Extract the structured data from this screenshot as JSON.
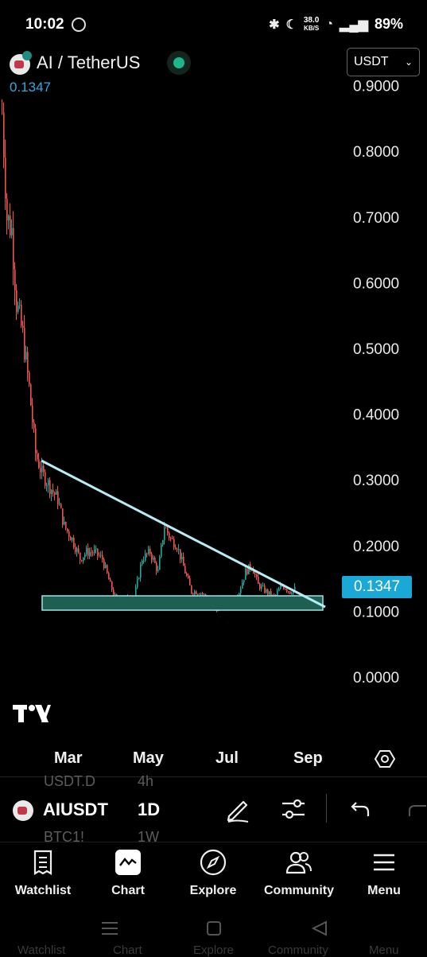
{
  "status_bar": {
    "time": "10:02",
    "net_speed_value": "38.0",
    "net_speed_unit": "KB/S",
    "battery": "89%"
  },
  "header": {
    "pair_title": "AI / TetherUS",
    "current_price": "0.1347",
    "currency": "USDT",
    "live_color": "#1fb58a"
  },
  "chart": {
    "price_tag": "0.1347",
    "y_ticks": [
      "0.9000",
      "0.8000",
      "0.7000",
      "0.6000",
      "0.5000",
      "0.4000",
      "0.3000",
      "0.2000",
      "0.1000",
      "0.0000"
    ],
    "x_ticks": [
      "Mar",
      "May",
      "Jul",
      "Sep"
    ],
    "accent_color": "#1aa9d6",
    "trendline_color": "#b8ecf5",
    "zone_fill": "#1e5f52",
    "up_color": "#26a69a",
    "down_color": "#ef5350"
  },
  "ticker_row": {
    "ghost_above_symbol": "USDT.D",
    "ghost_above_interval": "4h",
    "symbol": "AIUSDT",
    "interval": "1D",
    "ghost_below_symbol": "BTC1!",
    "ghost_below_interval": "1W"
  },
  "bottom_nav": {
    "items": [
      {
        "label": "Watchlist",
        "icon": "watchlist-icon"
      },
      {
        "label": "Chart",
        "icon": "chart-icon"
      },
      {
        "label": "Explore",
        "icon": "compass-icon"
      },
      {
        "label": "Community",
        "icon": "community-icon"
      },
      {
        "label": "Menu",
        "icon": "menu-icon"
      }
    ]
  },
  "ghost_bottom_labels": [
    "Watchlist",
    "Chart",
    "Explore",
    "Community",
    "Menu"
  ]
}
